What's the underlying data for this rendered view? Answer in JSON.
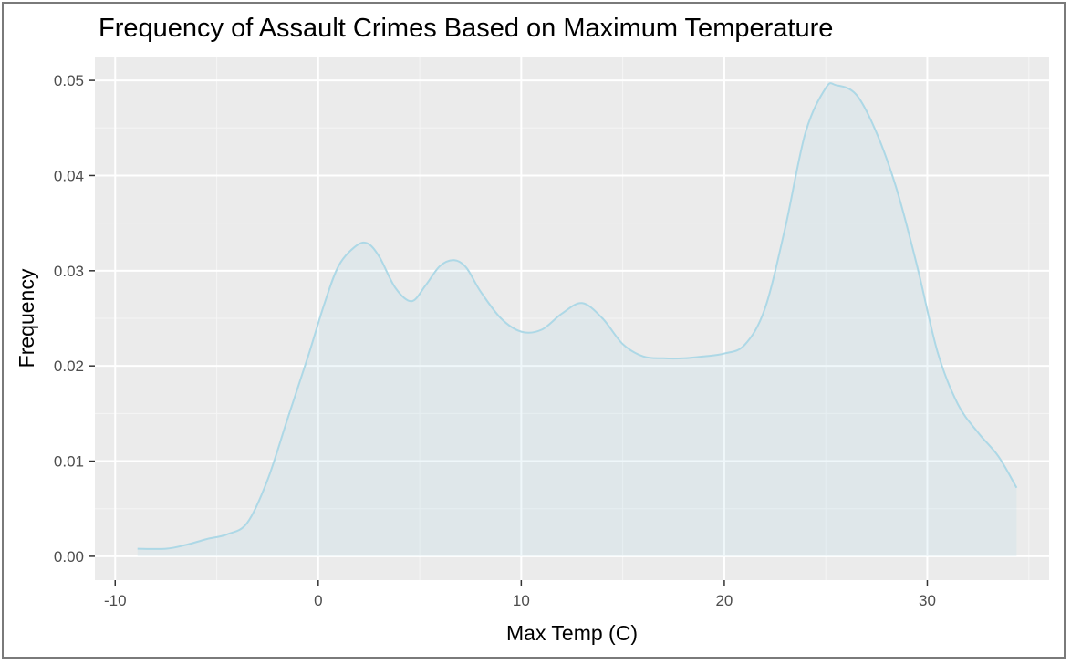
{
  "chart_data": {
    "type": "area",
    "title": "Frequency of Assault Crimes Based on Maximum Temperature",
    "xlabel": "Max Temp (C)",
    "ylabel": "Frequency",
    "xlim": [
      -11,
      36
    ],
    "ylim": [
      -0.0025,
      0.0525
    ],
    "x_ticks": [
      -10,
      0,
      10,
      20,
      30
    ],
    "x_tick_labels": [
      "-10",
      "0",
      "10",
      "20",
      "30"
    ],
    "y_ticks": [
      0.0,
      0.01,
      0.02,
      0.03,
      0.04,
      0.05
    ],
    "y_tick_labels": [
      "0.00",
      "0.01",
      "0.02",
      "0.03",
      "0.04",
      "0.05"
    ],
    "grid": true,
    "line_color": "#add8e6",
    "fill_color": "#add8e6",
    "series": [
      {
        "x": [
          -8.9,
          -7.5,
          -6.5,
          -5.5,
          -4.5,
          -3.5,
          -2.5,
          -1.5,
          -0.5,
          0.3,
          1.0,
          1.8,
          2.4,
          3.0,
          3.8,
          4.6,
          5.3,
          6.0,
          6.7,
          7.3,
          8.0,
          9.0,
          10.0,
          11.0,
          12.0,
          13.0,
          14.0,
          15.0,
          16.0,
          17.0,
          18.0,
          19.0,
          20.0,
          21.0,
          22.0,
          23.0,
          24.0,
          25.0,
          25.5,
          26.5,
          27.5,
          28.5,
          29.5,
          30.5,
          31.5,
          32.5,
          33.5,
          34.4
        ],
        "y": [
          0.0008,
          0.0008,
          0.0012,
          0.0018,
          0.0023,
          0.0035,
          0.008,
          0.0145,
          0.021,
          0.0265,
          0.0305,
          0.0325,
          0.0329,
          0.0315,
          0.0282,
          0.0268,
          0.0285,
          0.0305,
          0.0311,
          0.0303,
          0.0278,
          0.025,
          0.0236,
          0.0238,
          0.0255,
          0.0266,
          0.025,
          0.0223,
          0.021,
          0.0208,
          0.0208,
          0.021,
          0.0213,
          0.0222,
          0.026,
          0.0345,
          0.0445,
          0.0492,
          0.0495,
          0.0485,
          0.0445,
          0.0385,
          0.0305,
          0.0215,
          0.016,
          0.013,
          0.0105,
          0.0072
        ]
      }
    ]
  }
}
